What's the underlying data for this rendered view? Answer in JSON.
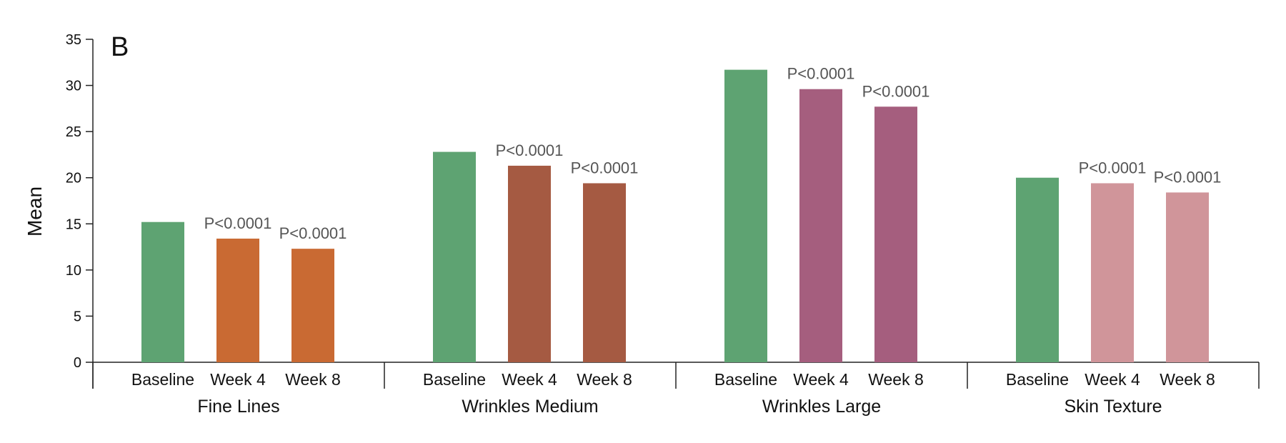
{
  "chart_data": {
    "type": "bar",
    "panel_label": "B",
    "ylabel": "Mean",
    "ylim": [
      0,
      35
    ],
    "yticks": [
      0,
      5,
      10,
      15,
      20,
      25,
      30,
      35
    ],
    "grid": false,
    "legend": "none",
    "categories": [
      "Baseline",
      "Week 4",
      "Week 8"
    ],
    "groups": [
      {
        "name": "Fine Lines",
        "values": [
          15.2,
          13.4,
          12.3
        ],
        "annotations": [
          "",
          "P<0.0001",
          "P<0.0001"
        ],
        "colors": [
          "#5ea372",
          "#c96a33",
          "#c96a33"
        ]
      },
      {
        "name": "Wrinkles Medium",
        "values": [
          22.8,
          21.3,
          19.4
        ],
        "annotations": [
          "",
          "P<0.0001",
          "P<0.0001"
        ],
        "colors": [
          "#5ea372",
          "#a55a42",
          "#a55a42"
        ]
      },
      {
        "name": "Wrinkles Large",
        "values": [
          31.7,
          29.6,
          27.7
        ],
        "annotations": [
          "",
          "P<0.0001",
          "P<0.0001"
        ],
        "colors": [
          "#5ea372",
          "#a55e7e",
          "#a55e7e"
        ]
      },
      {
        "name": "Skin Texture",
        "values": [
          20.0,
          19.4,
          18.4
        ],
        "annotations": [
          "",
          "P<0.0001",
          "P<0.0001"
        ],
        "colors": [
          "#5ea372",
          "#d0959a",
          "#d0959a"
        ]
      }
    ]
  }
}
